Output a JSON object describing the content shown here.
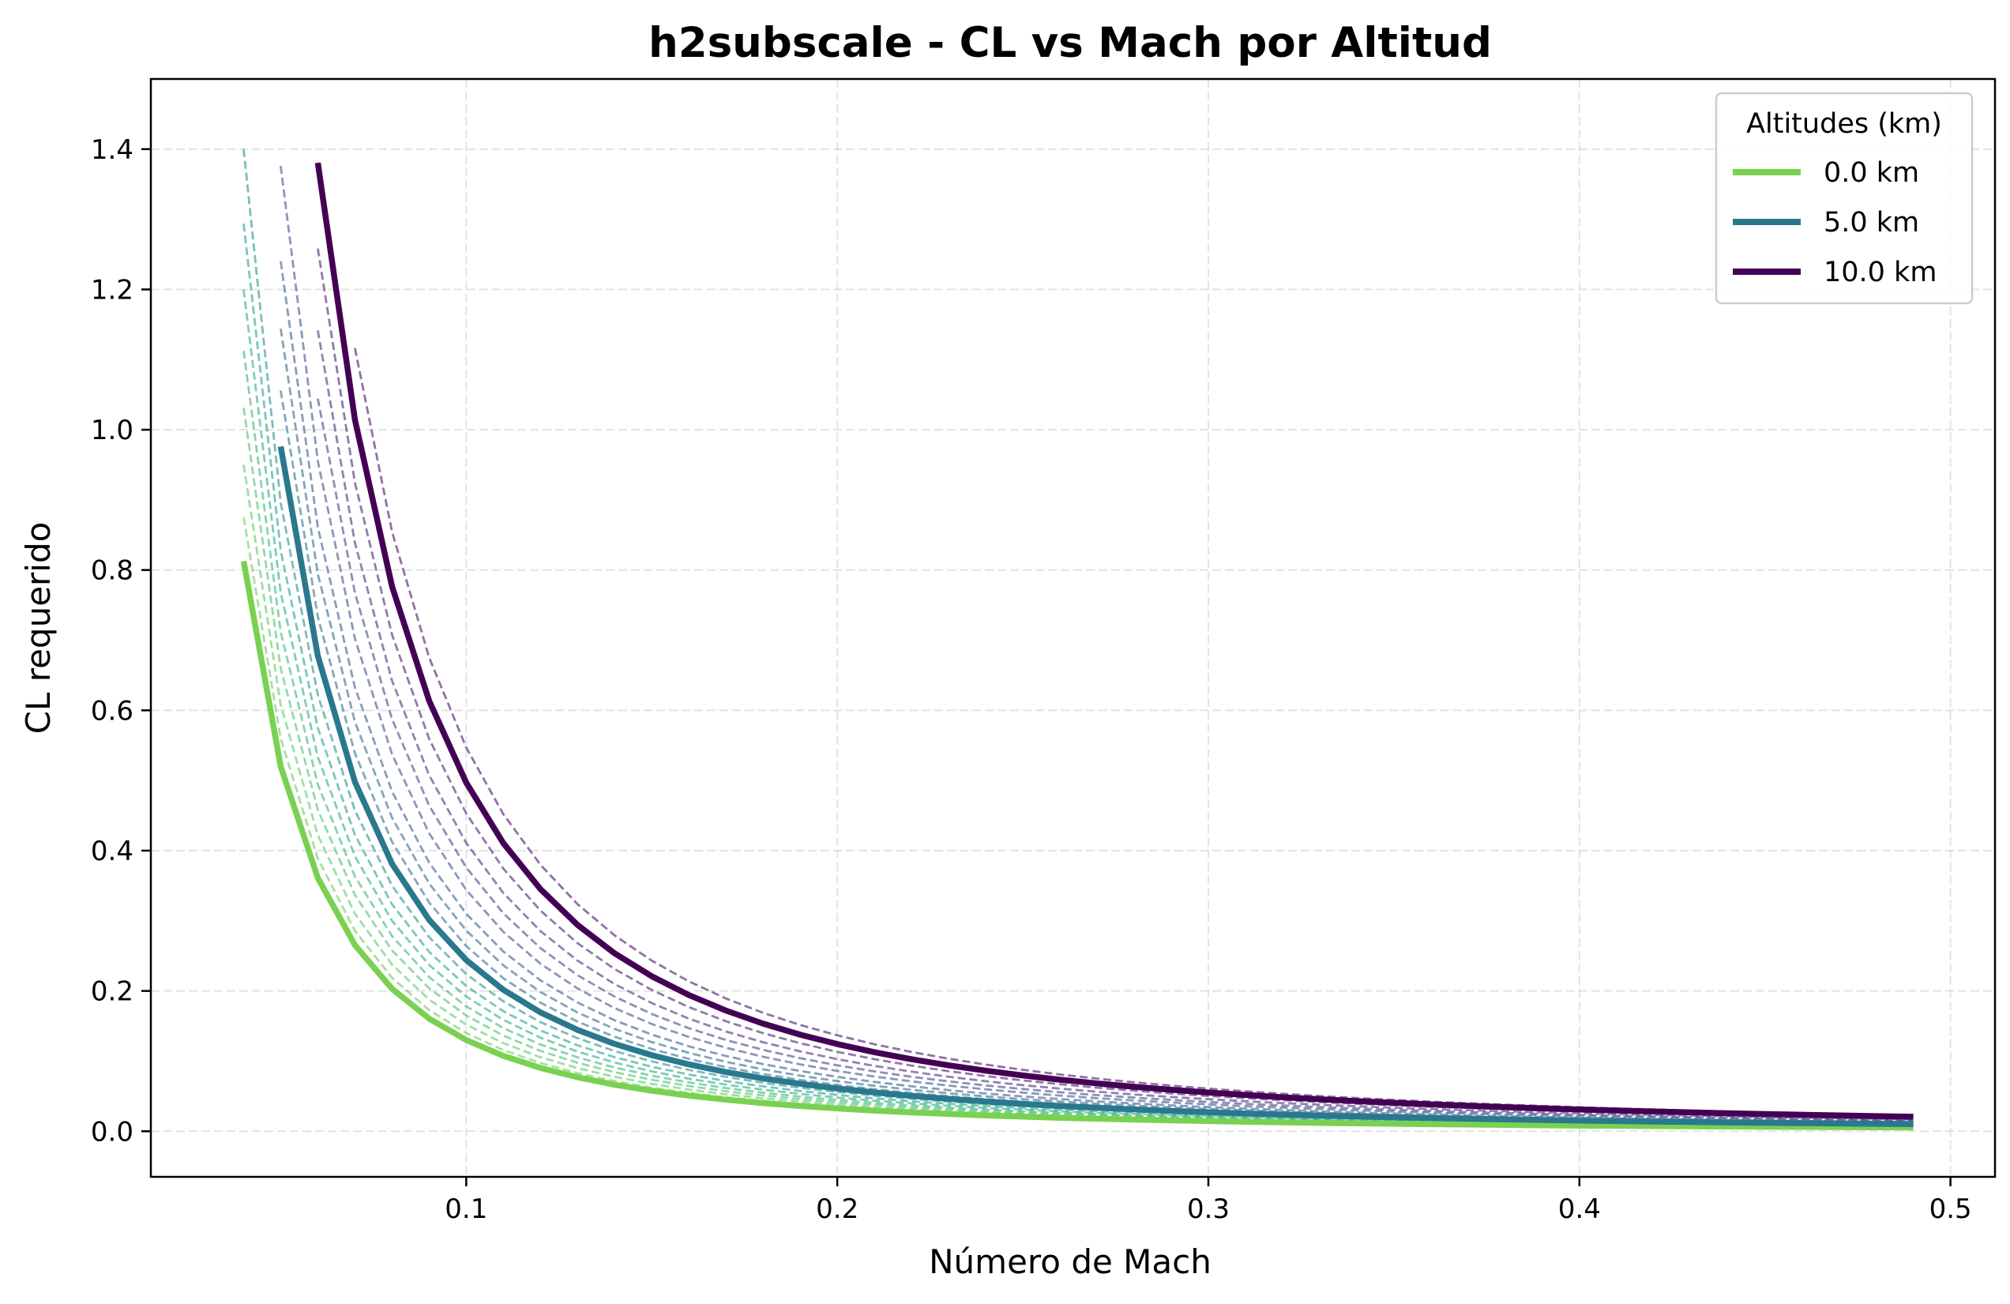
{
  "chart_data": {
    "type": "line",
    "title": "h2subscale - CL vs Mach por Altitud",
    "xlabel": "Número de Mach",
    "ylabel": "CL requerido",
    "xlim": [
      0.015,
      0.512
    ],
    "ylim": [
      -0.065,
      1.5
    ],
    "xticks": [
      0.1,
      0.2,
      0.3,
      0.4,
      0.5
    ],
    "xtick_labels": [
      "0.1",
      "0.2",
      "0.3",
      "0.4",
      "0.5"
    ],
    "yticks": [
      0.0,
      0.2,
      0.4,
      0.6,
      0.8,
      1.0,
      1.2,
      1.4
    ],
    "ytick_labels": [
      "0.0",
      "0.2",
      "0.4",
      "0.6",
      "0.8",
      "1.0",
      "1.2",
      "1.4"
    ],
    "grid": true,
    "legend": {
      "title": "Altitudes (km)",
      "position": "top-right",
      "entries": [
        {
          "label": "0.0 km",
          "color": "#7ad151"
        },
        {
          "label": "5.0 km",
          "color": "#2a788e"
        },
        {
          "label": "10.0 km",
          "color": "#440154"
        }
      ]
    },
    "x_end": 0.49,
    "series": [
      {
        "name": "0.0 km",
        "altitude": 0.0,
        "cl_coef": 0.0013,
        "mach_start": 0.04,
        "color": "#7ad151",
        "style": "solid"
      },
      {
        "name": "5.0 km",
        "altitude": 5.0,
        "cl_coef": 0.00244,
        "mach_start": 0.05,
        "color": "#2a788e",
        "style": "solid"
      },
      {
        "name": "10.0 km",
        "altitude": 10.0,
        "cl_coef": 0.00497,
        "mach_start": 0.06,
        "color": "#440154",
        "style": "solid"
      }
    ],
    "intermediate_series": [
      {
        "cl_coef": 0.0014,
        "mach_start": 0.04,
        "color": "#6ccd5a"
      },
      {
        "cl_coef": 0.00152,
        "mach_start": 0.04,
        "color": "#5ec962"
      },
      {
        "cl_coef": 0.00165,
        "mach_start": 0.04,
        "color": "#4ac16d"
      },
      {
        "cl_coef": 0.00178,
        "mach_start": 0.04,
        "color": "#35b779"
      },
      {
        "cl_coef": 0.00192,
        "mach_start": 0.04,
        "color": "#27ad81"
      },
      {
        "cl_coef": 0.00207,
        "mach_start": 0.04,
        "color": "#1fa187"
      },
      {
        "cl_coef": 0.00224,
        "mach_start": 0.04,
        "color": "#21918c"
      },
      {
        "cl_coef": 0.00264,
        "mach_start": 0.05,
        "color": "#2c728e"
      },
      {
        "cl_coef": 0.00286,
        "mach_start": 0.05,
        "color": "#31688e"
      },
      {
        "cl_coef": 0.0031,
        "mach_start": 0.05,
        "color": "#365c8d"
      },
      {
        "cl_coef": 0.00344,
        "mach_start": 0.05,
        "color": "#3b528b"
      },
      {
        "cl_coef": 0.00376,
        "mach_start": 0.06,
        "color": "#414487"
      },
      {
        "cl_coef": 0.00411,
        "mach_start": 0.06,
        "color": "#472d7b"
      },
      {
        "cl_coef": 0.00453,
        "mach_start": 0.06,
        "color": "#481f70"
      },
      {
        "cl_coef": 0.00547,
        "mach_start": 0.07,
        "color": "#471365"
      }
    ]
  }
}
